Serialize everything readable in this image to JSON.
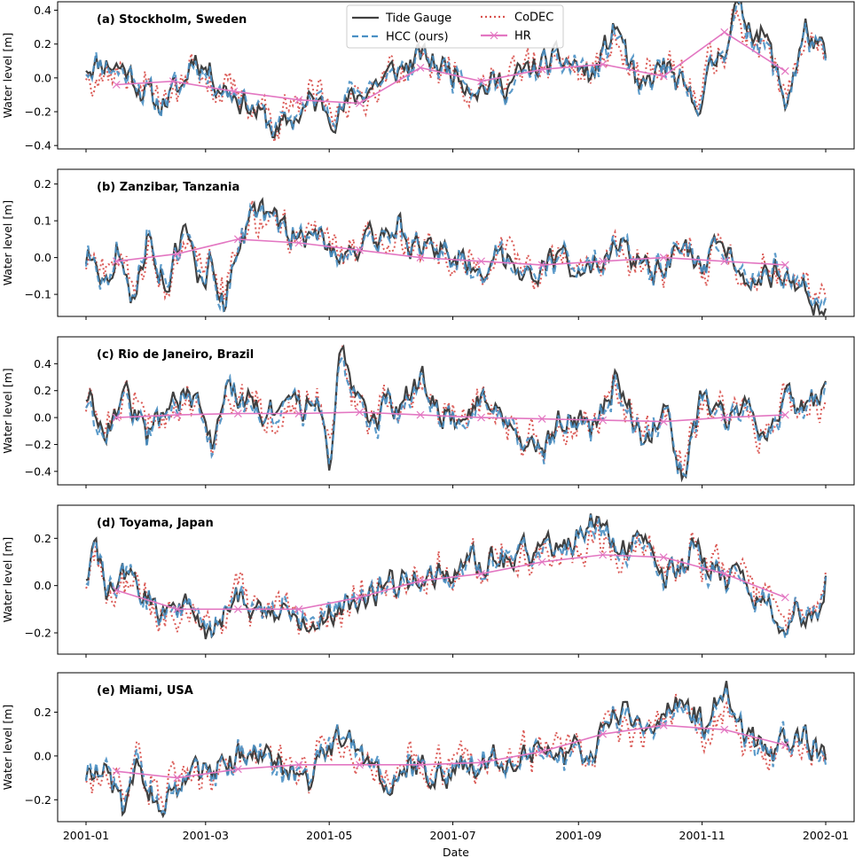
{
  "chart_data": {
    "type": "line",
    "xlabel": "Date",
    "x_ticks": [
      "2001-01",
      "2001-03",
      "2001-05",
      "2001-07",
      "2001-09",
      "2001-11",
      "2002-01"
    ],
    "x_range": [
      "2001-01-01",
      "2002-01-01"
    ],
    "series_styles": [
      {
        "name": "Tide Gauge",
        "color": "#404040",
        "style": "solid"
      },
      {
        "name": "HCC (ours)",
        "color": "#4a90c4",
        "style": "dashed"
      },
      {
        "name": "CoDEC",
        "color": "#d9534f",
        "style": "dotted"
      },
      {
        "name": "HR",
        "color": "#e377c2",
        "style": "solid",
        "marker": "x"
      }
    ],
    "legend": {
      "placement": "top-center",
      "panel": 0
    },
    "panels": [
      {
        "title": "(a) Stockholm, Sweden",
        "ylabel": "Water level [m]",
        "ylim": [
          -0.42,
          0.45
        ],
        "yticks": [
          -0.4,
          -0.2,
          0.0,
          0.2,
          0.4
        ],
        "ytick_labels": [
          "−0.4",
          "−0.2",
          "0.0",
          "0.2",
          "0.4"
        ],
        "tide_anchors": [
          [
            0,
            0.08
          ],
          [
            10,
            0.1
          ],
          [
            20,
            0.05
          ],
          [
            35,
            -0.16
          ],
          [
            48,
            -0.05
          ],
          [
            53,
            0.15
          ],
          [
            65,
            -0.02
          ],
          [
            80,
            -0.15
          ],
          [
            95,
            -0.33
          ],
          [
            110,
            -0.15
          ],
          [
            125,
            -0.2
          ],
          [
            140,
            -0.05
          ],
          [
            155,
            0.05
          ],
          [
            165,
            0.12
          ],
          [
            180,
            0.05
          ],
          [
            195,
            -0.05
          ],
          [
            210,
            -0.02
          ],
          [
            225,
            0.08
          ],
          [
            238,
            0.1
          ],
          [
            250,
            0.0
          ],
          [
            262,
            0.32
          ],
          [
            273,
            -0.12
          ],
          [
            285,
            0.08
          ],
          [
            300,
            -0.18
          ],
          [
            315,
            0.2
          ],
          [
            320,
            0.4
          ],
          [
            335,
            0.25
          ],
          [
            345,
            -0.15
          ],
          [
            355,
            0.28
          ],
          [
            365,
            0.1
          ]
        ],
        "hr_points": [
          [
            15,
            -0.04
          ],
          [
            43,
            -0.02
          ],
          [
            73,
            -0.08
          ],
          [
            105,
            -0.13
          ],
          [
            135,
            -0.15
          ],
          [
            165,
            0.06
          ],
          [
            195,
            -0.02
          ],
          [
            225,
            0.05
          ],
          [
            255,
            0.08
          ],
          [
            285,
            0.01
          ],
          [
            315,
            0.27
          ],
          [
            345,
            0.04
          ]
        ]
      },
      {
        "title": "(b) Zanzibar, Tanzania",
        "ylabel": "Water level [m]",
        "ylim": [
          -0.16,
          0.24
        ],
        "yticks": [
          -0.1,
          0.0,
          0.1,
          0.2
        ],
        "ytick_labels": [
          "−0.1",
          "0.0",
          "0.1",
          "0.2"
        ],
        "tide_anchors": [
          [
            0,
            0.0
          ],
          [
            5,
            0.02
          ],
          [
            10,
            -0.08
          ],
          [
            15,
            0.04
          ],
          [
            22,
            -0.14
          ],
          [
            30,
            0.05
          ],
          [
            40,
            -0.07
          ],
          [
            48,
            0.07
          ],
          [
            58,
            -0.08
          ],
          [
            62,
            0.0
          ],
          [
            68,
            -0.13
          ],
          [
            75,
            0.05
          ],
          [
            85,
            0.13
          ],
          [
            95,
            0.08
          ],
          [
            105,
            0.06
          ],
          [
            115,
            0.05
          ],
          [
            125,
            0.02
          ],
          [
            140,
            0.04
          ],
          [
            155,
            0.1
          ],
          [
            165,
            0.0
          ],
          [
            175,
            0.03
          ],
          [
            190,
            -0.02
          ],
          [
            205,
            0.0
          ],
          [
            220,
            -0.03
          ],
          [
            235,
            0.0
          ],
          [
            250,
            -0.05
          ],
          [
            265,
            0.03
          ],
          [
            280,
            -0.06
          ],
          [
            295,
            0.02
          ],
          [
            305,
            -0.05
          ],
          [
            315,
            0.04
          ],
          [
            330,
            -0.06
          ],
          [
            345,
            -0.02
          ],
          [
            355,
            -0.1
          ],
          [
            360,
            -0.13
          ],
          [
            365,
            -0.12
          ]
        ],
        "hr_points": [
          [
            15,
            -0.01
          ],
          [
            45,
            0.01
          ],
          [
            75,
            0.05
          ],
          [
            105,
            0.04
          ],
          [
            135,
            0.02
          ],
          [
            165,
            0.0
          ],
          [
            195,
            -0.01
          ],
          [
            225,
            -0.02
          ],
          [
            255,
            -0.01
          ],
          [
            285,
            0.0
          ],
          [
            315,
            -0.01
          ],
          [
            345,
            -0.02
          ]
        ]
      },
      {
        "title": "(c) Rio de Janeiro, Brazil",
        "ylabel": "Water level [m]",
        "ylim": [
          -0.5,
          0.6
        ],
        "yticks": [
          -0.4,
          -0.2,
          0.0,
          0.2,
          0.4
        ],
        "ytick_labels": [
          "−0.4",
          "−0.2",
          "0.0",
          "0.2",
          "0.4"
        ],
        "tide_anchors": [
          [
            0,
            0.17
          ],
          [
            10,
            -0.05
          ],
          [
            20,
            0.15
          ],
          [
            30,
            -0.15
          ],
          [
            45,
            0.2
          ],
          [
            55,
            0.05
          ],
          [
            62,
            -0.2
          ],
          [
            70,
            0.2
          ],
          [
            85,
            0.1
          ],
          [
            95,
            0.0
          ],
          [
            105,
            0.05
          ],
          [
            115,
            0.1
          ],
          [
            120,
            -0.38
          ],
          [
            125,
            0.45
          ],
          [
            130,
            0.35
          ],
          [
            140,
            0.0
          ],
          [
            155,
            0.1
          ],
          [
            165,
            0.3
          ],
          [
            175,
            0.1
          ],
          [
            185,
            -0.1
          ],
          [
            195,
            0.2
          ],
          [
            210,
            0.0
          ],
          [
            225,
            -0.3
          ],
          [
            235,
            0.0
          ],
          [
            250,
            -0.1
          ],
          [
            262,
            0.3
          ],
          [
            275,
            -0.2
          ],
          [
            285,
            0.1
          ],
          [
            295,
            -0.46
          ],
          [
            305,
            0.2
          ],
          [
            315,
            0.0
          ],
          [
            325,
            0.1
          ],
          [
            335,
            -0.05
          ],
          [
            345,
            0.15
          ],
          [
            355,
            0.05
          ],
          [
            365,
            0.2
          ]
        ],
        "hr_points": [
          [
            15,
            0.0
          ],
          [
            45,
            0.02
          ],
          [
            75,
            0.03
          ],
          [
            105,
            0.03
          ],
          [
            135,
            0.04
          ],
          [
            165,
            0.02
          ],
          [
            195,
            0.0
          ],
          [
            225,
            -0.01
          ],
          [
            255,
            -0.02
          ],
          [
            285,
            -0.03
          ],
          [
            315,
            0.0
          ],
          [
            345,
            0.02
          ]
        ]
      },
      {
        "title": "(d) Toyama, Japan",
        "ylabel": "Water level [m]",
        "ylim": [
          -0.29,
          0.34
        ],
        "yticks": [
          -0.2,
          0.0,
          0.2
        ],
        "ytick_labels": [
          "−0.2",
          "0.0",
          "0.2"
        ],
        "tide_anchors": [
          [
            0,
            0.05
          ],
          [
            5,
            0.17
          ],
          [
            10,
            -0.05
          ],
          [
            20,
            0.05
          ],
          [
            35,
            -0.1
          ],
          [
            50,
            -0.08
          ],
          [
            60,
            -0.22
          ],
          [
            75,
            -0.05
          ],
          [
            90,
            -0.1
          ],
          [
            105,
            -0.15
          ],
          [
            120,
            -0.12
          ],
          [
            135,
            -0.05
          ],
          [
            150,
            0.0
          ],
          [
            165,
            0.05
          ],
          [
            180,
            0.05
          ],
          [
            195,
            0.1
          ],
          [
            210,
            0.12
          ],
          [
            225,
            0.15
          ],
          [
            240,
            0.2
          ],
          [
            250,
            0.3
          ],
          [
            260,
            0.15
          ],
          [
            270,
            0.2
          ],
          [
            280,
            0.1
          ],
          [
            290,
            0.05
          ],
          [
            300,
            0.15
          ],
          [
            310,
            0.08
          ],
          [
            320,
            0.0
          ],
          [
            330,
            -0.05
          ],
          [
            340,
            -0.15
          ],
          [
            350,
            -0.1
          ],
          [
            360,
            -0.18
          ],
          [
            365,
            0.02
          ]
        ],
        "hr_points": [
          [
            15,
            -0.02
          ],
          [
            45,
            -0.1
          ],
          [
            75,
            -0.1
          ],
          [
            105,
            -0.1
          ],
          [
            135,
            -0.05
          ],
          [
            165,
            0.02
          ],
          [
            195,
            0.05
          ],
          [
            225,
            0.1
          ],
          [
            255,
            0.13
          ],
          [
            285,
            0.12
          ],
          [
            315,
            0.05
          ],
          [
            345,
            -0.05
          ]
        ]
      },
      {
        "title": "(e) Miami, USA",
        "ylabel": "Water level [m]",
        "ylim": [
          -0.3,
          0.38
        ],
        "yticks": [
          -0.2,
          0.0,
          0.2
        ],
        "ytick_labels": [
          "−0.2",
          "0.0",
          "0.2"
        ],
        "tide_anchors": [
          [
            0,
            -0.08
          ],
          [
            10,
            -0.05
          ],
          [
            18,
            -0.25
          ],
          [
            25,
            0.0
          ],
          [
            35,
            -0.2
          ],
          [
            50,
            -0.12
          ],
          [
            65,
            -0.05
          ],
          [
            80,
            0.02
          ],
          [
            95,
            -0.05
          ],
          [
            110,
            -0.1
          ],
          [
            120,
            0.05
          ],
          [
            130,
            0.08
          ],
          [
            140,
            -0.05
          ],
          [
            150,
            -0.15
          ],
          [
            160,
            -0.05
          ],
          [
            175,
            -0.08
          ],
          [
            190,
            -0.05
          ],
          [
            205,
            0.0
          ],
          [
            220,
            0.05
          ],
          [
            235,
            -0.03
          ],
          [
            250,
            0.05
          ],
          [
            265,
            0.2
          ],
          [
            275,
            0.1
          ],
          [
            285,
            0.2
          ],
          [
            295,
            0.25
          ],
          [
            305,
            0.15
          ],
          [
            315,
            0.34
          ],
          [
            325,
            0.1
          ],
          [
            335,
            0.0
          ],
          [
            345,
            0.05
          ],
          [
            355,
            0.1
          ],
          [
            365,
            0.0
          ]
        ],
        "hr_points": [
          [
            15,
            -0.07
          ],
          [
            45,
            -0.1
          ],
          [
            75,
            -0.06
          ],
          [
            105,
            -0.04
          ],
          [
            135,
            -0.04
          ],
          [
            165,
            -0.04
          ],
          [
            195,
            -0.03
          ],
          [
            225,
            0.02
          ],
          [
            255,
            0.1
          ],
          [
            285,
            0.14
          ],
          [
            315,
            0.12
          ],
          [
            345,
            0.05
          ]
        ]
      }
    ]
  }
}
